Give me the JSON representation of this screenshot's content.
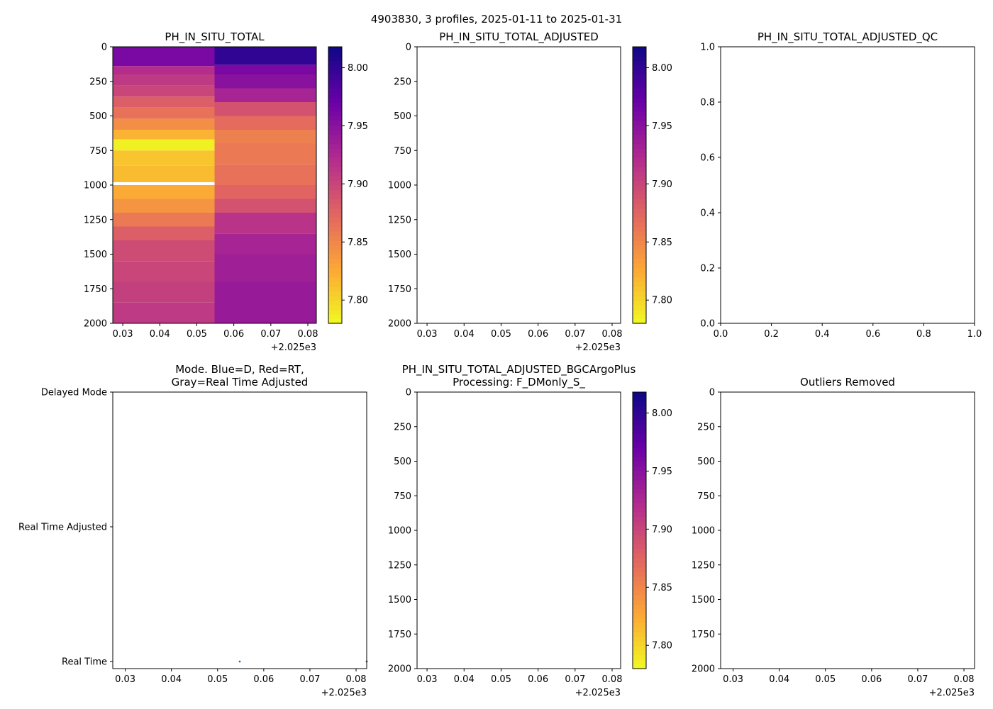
{
  "figure_title": "4903830, 3 profiles, 2025-01-11 to 2025-01-31",
  "colormap": [
    "#f0f921",
    "#fca636",
    "#e16462",
    "#b12a90",
    "#6a00a8",
    "#0d0887"
  ],
  "axis_color": "#000000",
  "gap_color": "#ffffff",
  "marker_color": "#1f77b4",
  "chart_data": [
    {
      "id": "ph_total",
      "type": "heatmap",
      "title": "PH_IN_SITU_TOTAL",
      "x_range": [
        0.0273,
        0.0823
      ],
      "y_range": [
        0,
        2000
      ],
      "y_inverted": true,
      "x_ticks": [
        "0.03",
        "0.04",
        "0.05",
        "0.06",
        "0.07",
        "0.08"
      ],
      "x_tick_values": [
        0.03,
        0.04,
        0.05,
        0.06,
        0.07,
        0.08
      ],
      "x_offset": "+2.025e3",
      "y_ticks": [
        "0",
        "250",
        "500",
        "750",
        "1000",
        "1250",
        "1500",
        "1750",
        "2000"
      ],
      "y_tick_values": [
        0,
        250,
        500,
        750,
        1000,
        1250,
        1500,
        1750,
        2000
      ],
      "columns": [
        {
          "x_start": 0.0273,
          "x_end": 0.0548,
          "cells": [
            {
              "top": 0,
              "bottom": 140,
              "value": 7.96
            },
            {
              "top": 140,
              "bottom": 200,
              "value": 7.92
            },
            {
              "top": 200,
              "bottom": 280,
              "value": 7.91
            },
            {
              "top": 280,
              "bottom": 360,
              "value": 7.9
            },
            {
              "top": 360,
              "bottom": 440,
              "value": 7.88
            },
            {
              "top": 440,
              "bottom": 520,
              "value": 7.865
            },
            {
              "top": 520,
              "bottom": 600,
              "value": 7.845
            },
            {
              "top": 600,
              "bottom": 670,
              "value": 7.82
            },
            {
              "top": 670,
              "bottom": 750,
              "value": 7.785
            },
            {
              "top": 750,
              "bottom": 860,
              "value": 7.81
            },
            {
              "top": 860,
              "bottom": 980,
              "value": 7.815
            },
            {
              "top": 980,
              "bottom": 1000,
              "value": null
            },
            {
              "top": 1000,
              "bottom": 1100,
              "value": 7.825
            },
            {
              "top": 1100,
              "bottom": 1200,
              "value": 7.84
            },
            {
              "top": 1200,
              "bottom": 1300,
              "value": 7.86
            },
            {
              "top": 1300,
              "bottom": 1400,
              "value": 7.88
            },
            {
              "top": 1400,
              "bottom": 1550,
              "value": 7.895
            },
            {
              "top": 1550,
              "bottom": 1700,
              "value": 7.9
            },
            {
              "top": 1700,
              "bottom": 1850,
              "value": 7.905
            },
            {
              "top": 1850,
              "bottom": 2000,
              "value": 7.91
            }
          ]
        },
        {
          "x_start": 0.0548,
          "x_end": 0.0823,
          "cells": [
            {
              "top": 0,
              "bottom": 130,
              "value": 8.0
            },
            {
              "top": 130,
              "bottom": 200,
              "value": 7.96
            },
            {
              "top": 200,
              "bottom": 300,
              "value": 7.95
            },
            {
              "top": 300,
              "bottom": 400,
              "value": 7.93
            },
            {
              "top": 400,
              "bottom": 500,
              "value": 7.89
            },
            {
              "top": 500,
              "bottom": 600,
              "value": 7.87
            },
            {
              "top": 600,
              "bottom": 700,
              "value": 7.855
            },
            {
              "top": 700,
              "bottom": 850,
              "value": 7.86
            },
            {
              "top": 850,
              "bottom": 1000,
              "value": 7.865
            },
            {
              "top": 1000,
              "bottom": 1100,
              "value": 7.875
            },
            {
              "top": 1100,
              "bottom": 1200,
              "value": 7.89
            },
            {
              "top": 1200,
              "bottom": 1350,
              "value": 7.915
            },
            {
              "top": 1350,
              "bottom": 1500,
              "value": 7.93
            },
            {
              "top": 1500,
              "bottom": 1700,
              "value": 7.935
            },
            {
              "top": 1700,
              "bottom": 2000,
              "value": 7.94
            }
          ]
        }
      ],
      "colorbar": {
        "min": 7.78,
        "max": 8.018,
        "ticks": [
          "7.80",
          "7.85",
          "7.90",
          "7.95",
          "8.00"
        ],
        "tick_values": [
          7.8,
          7.85,
          7.9,
          7.95,
          8.0
        ]
      }
    },
    {
      "id": "ph_adjusted",
      "type": "heatmap",
      "title": "PH_IN_SITU_TOTAL_ADJUSTED",
      "x_range": [
        0.0273,
        0.0823
      ],
      "y_range": [
        0,
        2000
      ],
      "y_inverted": true,
      "x_ticks": [
        "0.03",
        "0.04",
        "0.05",
        "0.06",
        "0.07",
        "0.08"
      ],
      "x_tick_values": [
        0.03,
        0.04,
        0.05,
        0.06,
        0.07,
        0.08
      ],
      "x_offset": "+2.025e3",
      "y_ticks": [
        "0",
        "250",
        "500",
        "750",
        "1000",
        "1250",
        "1500",
        "1750",
        "2000"
      ],
      "y_tick_values": [
        0,
        250,
        500,
        750,
        1000,
        1250,
        1500,
        1750,
        2000
      ],
      "columns": [],
      "colorbar": {
        "min": 7.78,
        "max": 8.018,
        "ticks": [
          "7.80",
          "7.85",
          "7.90",
          "7.95",
          "8.00"
        ],
        "tick_values": [
          7.8,
          7.85,
          7.9,
          7.95,
          8.0
        ]
      }
    },
    {
      "id": "ph_adjusted_qc",
      "type": "scatter",
      "title": "PH_IN_SITU_TOTAL_ADJUSTED_QC",
      "x_range": [
        0,
        1
      ],
      "y_range": [
        0,
        1
      ],
      "y_inverted": false,
      "x_ticks": [
        "0.0",
        "0.2",
        "0.4",
        "0.6",
        "0.8",
        "1.0"
      ],
      "x_tick_values": [
        0,
        0.2,
        0.4,
        0.6,
        0.8,
        1.0
      ],
      "y_ticks": [
        "0.0",
        "0.2",
        "0.4",
        "0.6",
        "0.8",
        "1.0"
      ],
      "y_tick_values": [
        0,
        0.2,
        0.4,
        0.6,
        0.8,
        1.0
      ],
      "points": []
    },
    {
      "id": "mode",
      "type": "scatter",
      "title": [
        "Mode. Blue=D, Red=RT,",
        "Gray=Real Time Adjusted"
      ],
      "x_range": [
        0.0273,
        0.0823
      ],
      "y_range": [
        0,
        2
      ],
      "y_inverted": false,
      "x_ticks": [
        "0.03",
        "0.04",
        "0.05",
        "0.06",
        "0.07",
        "0.08"
      ],
      "x_tick_values": [
        0.03,
        0.04,
        0.05,
        0.06,
        0.07,
        0.08
      ],
      "x_offset": "+2.025e3",
      "y_ticks": [
        "Real Time",
        "Real Time Adjusted",
        "Delayed Mode"
      ],
      "y_tick_values": [
        0,
        1,
        2
      ],
      "points": [
        {
          "x": 0.0548,
          "y": 0
        },
        {
          "x": 0.0823,
          "y": 0
        }
      ]
    },
    {
      "id": "ph_bgcargoplus",
      "type": "heatmap",
      "title": [
        "PH_IN_SITU_TOTAL_ADJUSTED_BGCArgoPlus",
        "Processing: F_DMonly_S_"
      ],
      "x_range": [
        0.0273,
        0.0823
      ],
      "y_range": [
        0,
        2000
      ],
      "y_inverted": true,
      "x_ticks": [
        "0.03",
        "0.04",
        "0.05",
        "0.06",
        "0.07",
        "0.08"
      ],
      "x_tick_values": [
        0.03,
        0.04,
        0.05,
        0.06,
        0.07,
        0.08
      ],
      "x_offset": "+2.025e3",
      "y_ticks": [
        "0",
        "250",
        "500",
        "750",
        "1000",
        "1250",
        "1500",
        "1750",
        "2000"
      ],
      "y_tick_values": [
        0,
        250,
        500,
        750,
        1000,
        1250,
        1500,
        1750,
        2000
      ],
      "columns": [],
      "colorbar": {
        "min": 7.78,
        "max": 8.018,
        "ticks": [
          "7.80",
          "7.85",
          "7.90",
          "7.95",
          "8.00"
        ],
        "tick_values": [
          7.8,
          7.85,
          7.9,
          7.95,
          8.0
        ]
      }
    },
    {
      "id": "outliers",
      "type": "scatter",
      "title": "Outliers Removed",
      "x_range": [
        0.0273,
        0.0823
      ],
      "y_range": [
        0,
        2000
      ],
      "y_inverted": true,
      "x_ticks": [
        "0.03",
        "0.04",
        "0.05",
        "0.06",
        "0.07",
        "0.08"
      ],
      "x_tick_values": [
        0.03,
        0.04,
        0.05,
        0.06,
        0.07,
        0.08
      ],
      "x_offset": "+2.025e3",
      "y_ticks": [
        "0",
        "250",
        "500",
        "750",
        "1000",
        "1250",
        "1500",
        "1750",
        "2000"
      ],
      "y_tick_values": [
        0,
        250,
        500,
        750,
        1000,
        1250,
        1500,
        1750,
        2000
      ],
      "points": []
    }
  ]
}
